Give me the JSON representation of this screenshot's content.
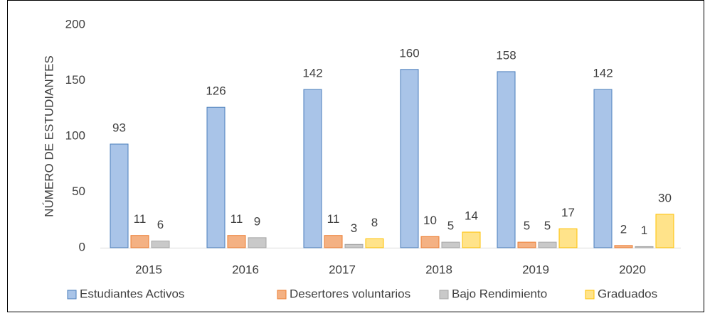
{
  "chart_data": {
    "type": "bar",
    "y_label": "NÚMERO DE ESTUDIANTES",
    "categories": [
      "2015",
      "2016",
      "2017",
      "2018",
      "2019",
      "2020"
    ],
    "series": [
      {
        "name": "Estudiantes Activos",
        "color": "#a9c4e8",
        "stroke": "#4a7ebb",
        "values": [
          93,
          126,
          142,
          160,
          158,
          142
        ]
      },
      {
        "name": "Desertores voluntarios",
        "color": "#f4b183",
        "stroke": "#ed7d31",
        "values": [
          11,
          11,
          11,
          10,
          5,
          2
        ]
      },
      {
        "name": "Bajo Rendimiento",
        "color": "#c9c9c9",
        "stroke": "#a5a5a5",
        "values": [
          6,
          9,
          3,
          5,
          5,
          1
        ]
      },
      {
        "name": "Graduados",
        "color": "#ffe38a",
        "stroke": "#ffc000",
        "values": [
          null,
          null,
          8,
          14,
          17,
          30
        ]
      }
    ],
    "ylim": [
      0,
      200
    ],
    "yticks": [
      0,
      50,
      100,
      150,
      200
    ],
    "grid": false,
    "legend": "bottom",
    "data_labels": true
  }
}
